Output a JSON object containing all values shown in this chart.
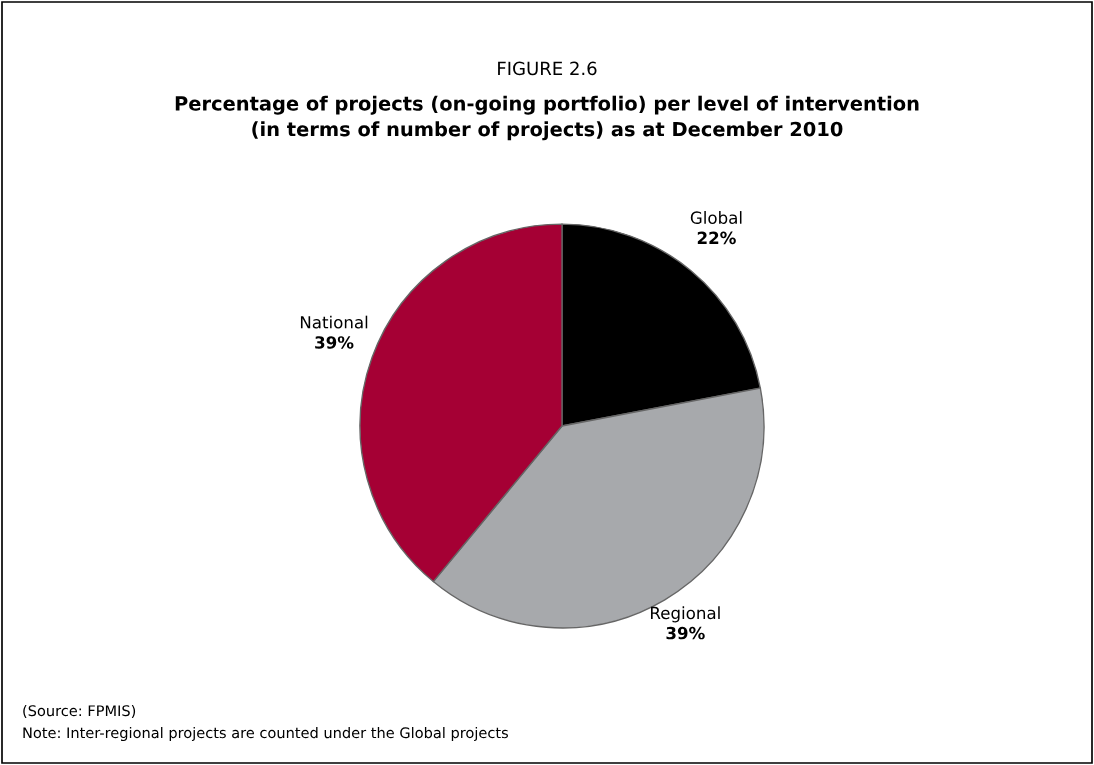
{
  "chart_data": {
    "type": "pie",
    "title": "FIGURE 2.6",
    "subtitle": "Percentage of projects (on-going portfolio) per level of intervention\n(in terms of number of projects) as at December 2010",
    "categories": [
      "Global",
      "Regional",
      "National"
    ],
    "values": [
      22,
      39,
      39
    ],
    "value_labels": [
      "22%",
      "39%",
      "39%"
    ],
    "colors": [
      "#000000",
      "#a7a9ac",
      "#a50034"
    ],
    "legend": false,
    "annotations": [
      "(Source: FPMIS)",
      "Note: Inter-regional projects are counted under the Global projects"
    ]
  }
}
